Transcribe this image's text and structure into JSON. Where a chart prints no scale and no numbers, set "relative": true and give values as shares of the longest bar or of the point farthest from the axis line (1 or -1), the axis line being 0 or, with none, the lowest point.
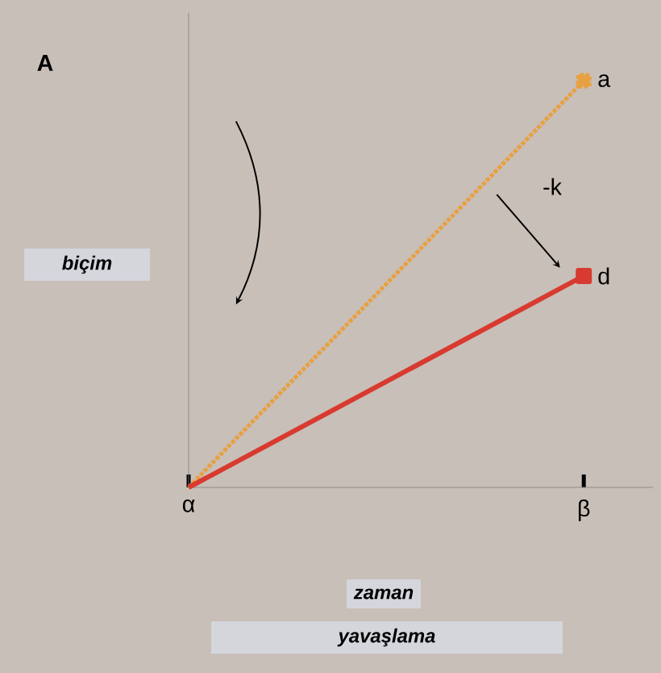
{
  "chart_data": {
    "type": "line",
    "relative": true,
    "ylabel": "A",
    "xlabel": "zaman",
    "annotations": [
      "biçim",
      "yavaşlama",
      "-k"
    ],
    "categories": [
      "α",
      "β"
    ],
    "series": [
      {
        "name": "a",
        "color": "#e8a040",
        "line_style": "dotted",
        "marker": "square",
        "values": [
          0,
          1
        ]
      },
      {
        "name": "d",
        "color": "#d83a30",
        "line_style": "solid",
        "marker": "square",
        "values": [
          0,
          0.52
        ]
      }
    ]
  }
}
